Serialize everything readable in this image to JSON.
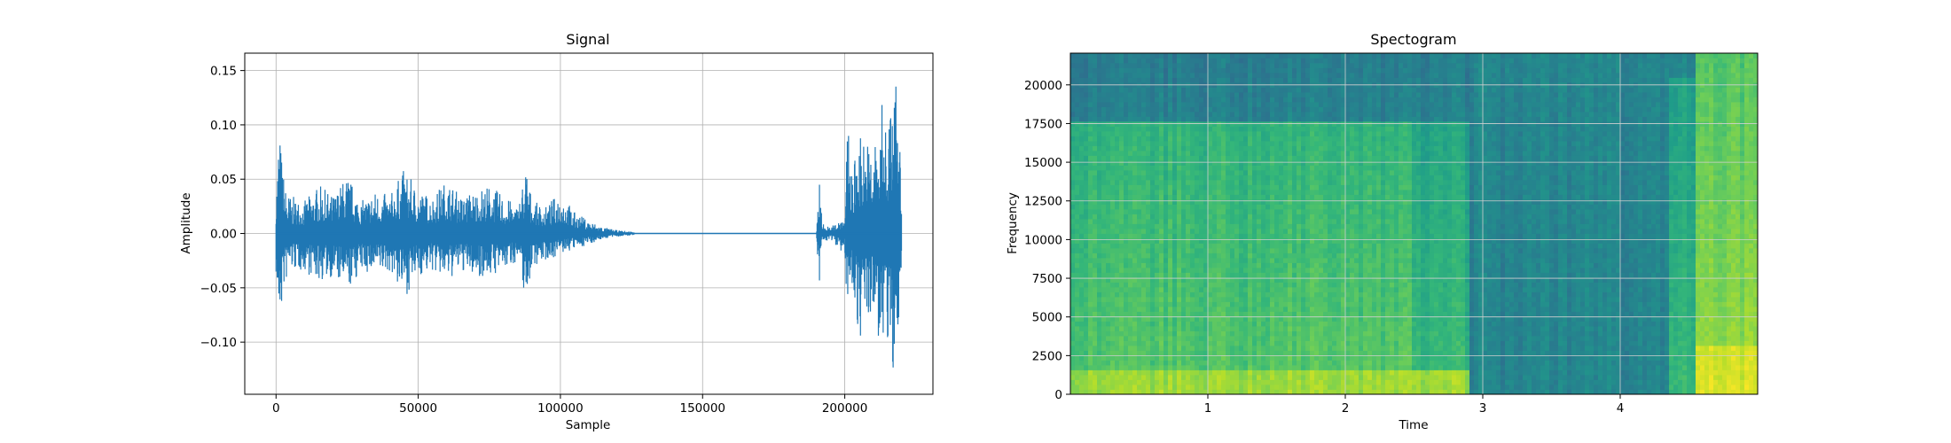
{
  "chart_data": [
    {
      "type": "line",
      "title": "Signal",
      "xlabel": "Sample",
      "ylabel": "Amplitude",
      "xlim": [
        -11000,
        231000
      ],
      "ylim": [
        -0.148,
        0.166
      ],
      "xticks": [
        0,
        50000,
        100000,
        150000,
        200000
      ],
      "yticks": [
        -0.1,
        -0.05,
        0.0,
        0.05,
        0.1,
        0.15
      ],
      "xtick_labels": [
        "0",
        "50000",
        "100000",
        "150000",
        "200000"
      ],
      "ytick_labels": [
        "−0.10",
        "−0.05",
        "0.00",
        "0.05",
        "0.10",
        "0.15"
      ],
      "grid": true,
      "line_color": "#1f77b4",
      "envelope": {
        "sample": [
          0,
          1000,
          3000,
          5000,
          10000,
          15000,
          20000,
          25000,
          30000,
          35000,
          40000,
          45000,
          50000,
          55000,
          60000,
          65000,
          70000,
          75000,
          80000,
          85000,
          88000,
          90000,
          95000,
          100000,
          105000,
          110000,
          115000,
          120000,
          125000,
          127000,
          190000,
          191000,
          192000,
          195000,
          200000,
          201000,
          203000,
          205000,
          207000,
          210000,
          213000,
          215000,
          217000,
          218000,
          219000,
          220000
        ],
        "upper": [
          0.035,
          0.104,
          0.045,
          0.035,
          0.03,
          0.045,
          0.035,
          0.055,
          0.03,
          0.04,
          0.035,
          0.06,
          0.04,
          0.035,
          0.05,
          0.035,
          0.04,
          0.045,
          0.035,
          0.025,
          0.065,
          0.03,
          0.025,
          0.04,
          0.02,
          0.012,
          0.006,
          0.003,
          0.002,
          0.0,
          0.0,
          0.058,
          0.01,
          0.005,
          0.02,
          0.1,
          0.06,
          0.1,
          0.09,
          0.08,
          0.12,
          0.11,
          0.13,
          0.152,
          0.1,
          0.06
        ],
        "lower": [
          -0.04,
          -0.093,
          -0.05,
          -0.035,
          -0.035,
          -0.045,
          -0.04,
          -0.055,
          -0.035,
          -0.04,
          -0.035,
          -0.06,
          -0.04,
          -0.035,
          -0.045,
          -0.035,
          -0.04,
          -0.04,
          -0.035,
          -0.025,
          -0.065,
          -0.03,
          -0.025,
          -0.02,
          -0.015,
          -0.01,
          -0.005,
          -0.003,
          -0.002,
          0.0,
          0.0,
          -0.062,
          -0.01,
          -0.005,
          -0.02,
          -0.08,
          -0.05,
          -0.1,
          -0.09,
          -0.08,
          -0.11,
          -0.12,
          -0.13,
          -0.135,
          -0.09,
          -0.06
        ]
      }
    },
    {
      "type": "heatmap",
      "title": "Spectogram",
      "xlabel": "Time",
      "ylabel": "Frequency",
      "xlim": [
        0,
        5.0
      ],
      "ylim": [
        0,
        22050
      ],
      "xticks": [
        1,
        2,
        3,
        4
      ],
      "yticks": [
        0,
        2500,
        5000,
        7500,
        10000,
        12500,
        15000,
        17500,
        20000
      ],
      "xtick_labels": [
        "1",
        "2",
        "3",
        "4"
      ],
      "ytick_labels": [
        "0",
        "2500",
        "5000",
        "7500",
        "10000",
        "12500",
        "15000",
        "17500",
        "20000"
      ],
      "grid": true,
      "colormap": "viridis",
      "regions": [
        {
          "t0": 0.0,
          "t1": 2.48,
          "f0": 0,
          "f1": 17500,
          "level": 0.62
        },
        {
          "t0": 2.48,
          "t1": 2.9,
          "f0": 0,
          "f1": 17500,
          "level": 0.55
        },
        {
          "t0": 0.0,
          "t1": 2.9,
          "f0": 17500,
          "f1": 22050,
          "level": 0.42
        },
        {
          "t0": 2.9,
          "t1": 4.35,
          "f0": 0,
          "f1": 22050,
          "level": 0.45
        },
        {
          "t0": 4.35,
          "t1": 4.55,
          "f0": 0,
          "f1": 20500,
          "level": 0.55
        },
        {
          "t0": 4.55,
          "t1": 5.0,
          "f0": 0,
          "f1": 22050,
          "level": 0.72
        }
      ],
      "low_band": {
        "f0": 0,
        "f1": 1500,
        "level": 0.85
      }
    }
  ]
}
